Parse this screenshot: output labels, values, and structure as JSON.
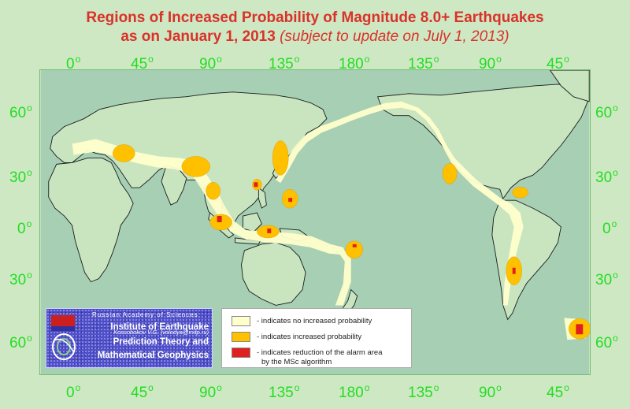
{
  "title": {
    "line1": "Regions of Increased Probability of Magnitude 8.0+ Earthquakes",
    "line2_main": "as on January 1, 2013",
    "line2_sub": "(subject to update on July 1, 2013)"
  },
  "axes": {
    "top_longitudes": [
      "0",
      "45",
      "90",
      "135",
      "180",
      "135",
      "90",
      "45"
    ],
    "bottom_longitudes": [
      "0",
      "45",
      "90",
      "135",
      "180",
      "135",
      "90",
      "45"
    ],
    "left_latitudes": [
      "60",
      "30",
      "0",
      "30",
      "60"
    ],
    "right_latitudes": [
      "60",
      "30",
      "0",
      "30",
      "60"
    ],
    "degree_symbol": "o"
  },
  "legend": {
    "items": [
      {
        "color": "#ffffcc",
        "label": "- indicates no increased probability"
      },
      {
        "color": "#ffc000",
        "label": "- indicates increased probability"
      },
      {
        "color": "#e02020",
        "label": "- indicates reduction of the alarm area"
      }
    ],
    "last_item_line2": "by the MSc algorithm"
  },
  "institution": {
    "academy": "Russian Academy of Sciences",
    "line1": "Institute of Earthquake",
    "line2": "Prediction Theory and",
    "line3": "Mathematical Geophysics",
    "author": "Kossobokov V.G. (volodya@mitp.ru)"
  },
  "colors": {
    "title": "#d8322a",
    "ticks": "#22dd22",
    "ocean": "#a6cfb4",
    "land": "#c9e5c0",
    "no_increase": "#ffffcc",
    "increased": "#ffc000",
    "reduction": "#e02020"
  }
}
